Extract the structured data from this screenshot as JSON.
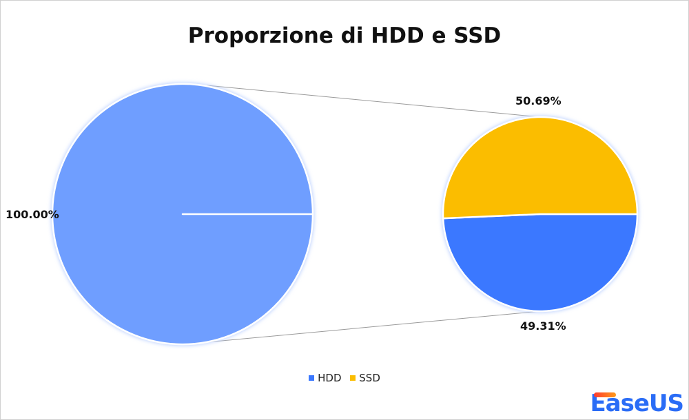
{
  "chart_data": {
    "type": "pie",
    "subtype": "pie-of-pie",
    "title": "Proporzione di HDD e SSD",
    "main_pie": {
      "slices": [
        {
          "label": "100.00%",
          "value": 100.0,
          "color": "#6f9eff"
        }
      ]
    },
    "secondary_pie": {
      "slices": [
        {
          "name": "HDD",
          "label": "49.31%",
          "value": 49.31,
          "color": "#3b78ff"
        },
        {
          "name": "SSD",
          "label": "50.69%",
          "value": 50.69,
          "color": "#fbbd00"
        }
      ]
    },
    "legend": {
      "placement": "bottom",
      "entries": [
        {
          "name": "HDD",
          "color": "#3b78ff"
        },
        {
          "name": "SSD",
          "color": "#fbbd00"
        }
      ]
    }
  },
  "logo": "EaseUS"
}
